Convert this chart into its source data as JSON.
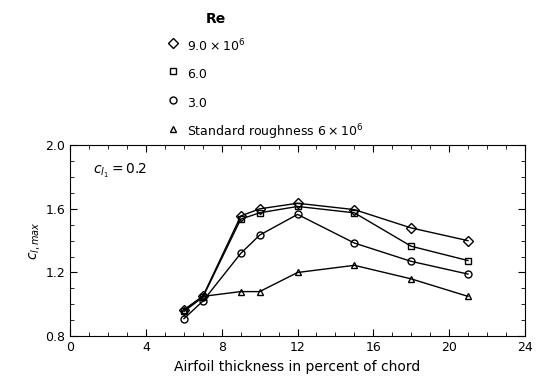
{
  "xlabel": "Airfoil thickness in percent of chord",
  "ylabel": "$c_{l,max}$",
  "annotation": "$c_{l_1} = 0.2$",
  "xlim": [
    0,
    24
  ],
  "ylim": [
    0.8,
    2.0
  ],
  "xticks": [
    0,
    4,
    8,
    12,
    16,
    20,
    24
  ],
  "yticks": [
    0.8,
    1.2,
    1.6,
    2.0
  ],
  "legend_title": "Re",
  "series": [
    {
      "label": "$9.0 \\times 10^6$",
      "x": [
        6,
        7,
        9,
        10,
        12,
        15,
        18,
        21
      ],
      "y": [
        0.965,
        1.05,
        1.555,
        1.6,
        1.635,
        1.595,
        1.48,
        1.4
      ],
      "marker": "D",
      "markersize": 5,
      "color": "black",
      "fillstyle": "none",
      "linewidth": 1.0
    },
    {
      "label": "6.0",
      "x": [
        6,
        7,
        9,
        10,
        12,
        15,
        18,
        21
      ],
      "y": [
        0.955,
        1.045,
        1.535,
        1.575,
        1.615,
        1.575,
        1.365,
        1.275
      ],
      "marker": "s",
      "markersize": 5,
      "color": "black",
      "fillstyle": "none",
      "linewidth": 1.0
    },
    {
      "label": "3.0",
      "x": [
        6,
        7,
        9,
        10,
        12,
        15,
        18,
        21
      ],
      "y": [
        0.91,
        1.02,
        1.32,
        1.435,
        1.565,
        1.385,
        1.27,
        1.19
      ],
      "marker": "o",
      "markersize": 5,
      "color": "black",
      "fillstyle": "none",
      "linewidth": 1.0
    },
    {
      "label": "Standard roughness $6 \\times 10^6$",
      "x": [
        6,
        7,
        9,
        10,
        12,
        15,
        18,
        21
      ],
      "y": [
        0.965,
        1.05,
        1.08,
        1.08,
        1.2,
        1.245,
        1.16,
        1.05
      ],
      "marker": "^",
      "markersize": 5,
      "color": "black",
      "fillstyle": "none",
      "linewidth": 1.0
    }
  ]
}
